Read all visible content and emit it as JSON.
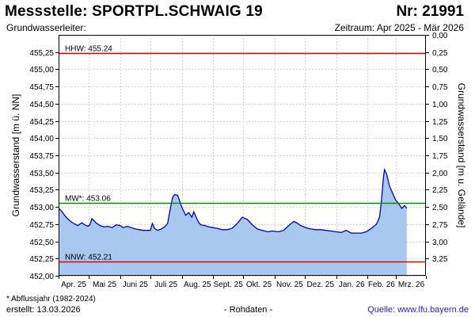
{
  "header": {
    "title": "Messstelle: SPORTPL.SCHWAIG 19",
    "station_nr": "Nr: 21991",
    "aquifer": "Grundwasserleiter:",
    "period": "Zeitraum: Apr 2025 - Mär 2026"
  },
  "footer": {
    "footnote": "* Abflussjahr (1982-2024)",
    "created": "erstellt:  13.03.2026",
    "data_note": "- Rohdaten -",
    "source": "Quelle: www.lfu.bayern.de"
  },
  "chart_data": {
    "type": "area",
    "ylabel": "Grundwasserstand [m ü. NN]",
    "y2label": "Grundwasserstand [m u. Gelände]",
    "ylim": [
      452.0,
      455.5
    ],
    "y2lim": [
      0.0,
      3.5
    ],
    "y_ticks": [
      "455,25",
      "455,00",
      "454,75",
      "454,50",
      "454,25",
      "454,00",
      "453,75",
      "453,50",
      "453,25",
      "453,00",
      "452,75",
      "452,50",
      "452,25",
      "452,00"
    ],
    "y_tick_values": [
      455.25,
      455.0,
      454.75,
      454.5,
      454.25,
      454.0,
      453.75,
      453.5,
      453.25,
      453.0,
      452.75,
      452.5,
      452.25,
      452.0
    ],
    "y2_ticks": [
      "0,00",
      "0,25",
      "0,50",
      "0,75",
      "1,00",
      "1,25",
      "1,50",
      "1,75",
      "2,00",
      "2,25",
      "2,50",
      "2,75",
      "3,00",
      "3,25"
    ],
    "y2_tick_values": [
      0.0,
      0.25,
      0.5,
      0.75,
      1.0,
      1.25,
      1.5,
      1.75,
      2.0,
      2.25,
      2.5,
      2.75,
      3.0,
      3.25
    ],
    "x_ticks": [
      "Apr. 25",
      "Mai 25",
      "Juni 25",
      "Juli 25",
      "Aug. 25",
      "Sept. 25",
      "Okt. 25",
      "Nov. 25",
      "Dez. 25",
      "Jan. 26",
      "Feb. 26",
      "Mrz. 26"
    ],
    "x_range": [
      "2025-04-01",
      "2026-03-31"
    ],
    "grid": true,
    "reference_lines": [
      {
        "label": "HHW: 455.24",
        "value": 455.24,
        "color": "#e00000"
      },
      {
        "label": "MW*: 453.06",
        "value": 453.06,
        "color": "#009000"
      },
      {
        "label": "NNW: 452.21",
        "value": 452.21,
        "color": "#e00000"
      }
    ],
    "series": [
      {
        "color": "#0000c8",
        "fill": "#a9c8ef",
        "x": [
          "2025-04-01",
          "2025-04-04",
          "2025-04-08",
          "2025-04-12",
          "2025-04-16",
          "2025-04-20",
          "2025-04-24",
          "2025-04-27",
          "2025-04-30",
          "2025-05-02",
          "2025-05-04",
          "2025-05-08",
          "2025-05-12",
          "2025-05-16",
          "2025-05-20",
          "2025-05-24",
          "2025-05-28",
          "2025-06-01",
          "2025-06-04",
          "2025-06-08",
          "2025-06-12",
          "2025-06-16",
          "2025-06-20",
          "2025-06-24",
          "2025-06-28",
          "2025-07-01",
          "2025-07-03",
          "2025-07-05",
          "2025-07-08",
          "2025-07-12",
          "2025-07-15",
          "2025-07-18",
          "2025-07-20",
          "2025-07-23",
          "2025-07-25",
          "2025-07-28",
          "2025-08-01",
          "2025-08-05",
          "2025-08-08",
          "2025-08-11",
          "2025-08-13",
          "2025-08-16",
          "2025-08-18",
          "2025-08-20",
          "2025-08-24",
          "2025-08-28",
          "2025-09-01",
          "2025-09-05",
          "2025-09-10",
          "2025-09-15",
          "2025-09-20",
          "2025-09-25",
          "2025-09-30",
          "2025-10-05",
          "2025-10-10",
          "2025-10-15",
          "2025-10-20",
          "2025-10-25",
          "2025-10-30",
          "2025-11-05",
          "2025-11-10",
          "2025-11-15",
          "2025-11-20",
          "2025-11-23",
          "2025-11-27",
          "2025-12-02",
          "2025-12-07",
          "2025-12-12",
          "2025-12-17",
          "2025-12-22",
          "2025-12-27",
          "2026-01-01",
          "2026-01-06",
          "2026-01-11",
          "2026-01-16",
          "2026-01-21",
          "2026-01-26",
          "2026-01-31",
          "2026-02-05",
          "2026-02-10",
          "2026-02-13",
          "2026-02-15",
          "2026-02-17",
          "2026-02-18",
          "2026-02-20",
          "2026-02-23",
          "2026-02-26",
          "2026-03-01",
          "2026-03-04",
          "2026-03-07",
          "2026-03-10",
          "2026-03-12"
        ],
        "values": [
          452.98,
          452.94,
          452.86,
          452.8,
          452.76,
          452.73,
          452.77,
          452.74,
          452.72,
          452.74,
          452.83,
          452.77,
          452.73,
          452.71,
          452.72,
          452.7,
          452.74,
          452.73,
          452.7,
          452.72,
          452.7,
          452.68,
          452.67,
          452.66,
          452.66,
          452.66,
          452.76,
          452.69,
          452.66,
          452.68,
          452.71,
          452.76,
          452.92,
          453.14,
          453.18,
          453.17,
          453.0,
          452.88,
          452.92,
          452.85,
          452.93,
          452.83,
          452.77,
          452.74,
          452.73,
          452.71,
          452.7,
          452.69,
          452.67,
          452.67,
          452.69,
          452.76,
          452.85,
          452.82,
          452.74,
          452.68,
          452.66,
          452.64,
          452.65,
          452.64,
          452.66,
          452.73,
          452.79,
          452.77,
          452.73,
          452.7,
          452.68,
          452.67,
          452.67,
          452.66,
          452.65,
          452.64,
          452.63,
          452.66,
          452.62,
          452.62,
          452.62,
          452.64,
          452.69,
          452.75,
          452.85,
          453.1,
          453.45,
          453.54,
          453.48,
          453.3,
          453.2,
          453.1,
          453.05,
          452.98,
          453.02,
          452.98
        ]
      }
    ]
  }
}
